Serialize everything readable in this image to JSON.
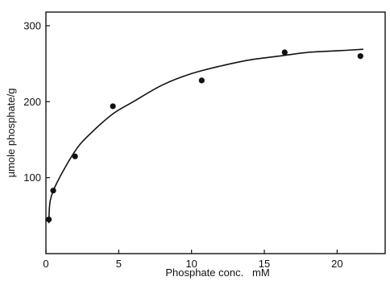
{
  "chart_data": {
    "type": "scatter",
    "xlabel": "Phosphate conc.   mM",
    "ylabel": "µmole phosphate/g",
    "xlim": [
      0,
      23.3
    ],
    "ylim": [
      0,
      318
    ],
    "x_ticks": [
      "0",
      "5",
      "10",
      "15",
      "20"
    ],
    "y_ticks": [
      "100",
      "200",
      "300"
    ],
    "grid": false,
    "series": [
      {
        "points": [
          {
            "x": 0.2,
            "y": 45
          },
          {
            "x": 0.5,
            "y": 83
          },
          {
            "x": 2.0,
            "y": 128
          },
          {
            "x": 4.6,
            "y": 194
          },
          {
            "x": 10.7,
            "y": 228
          },
          {
            "x": 16.4,
            "y": 265
          },
          {
            "x": 21.6,
            "y": 260
          }
        ]
      }
    ],
    "fit_curve": [
      {
        "x": 0.2,
        "y": 40
      },
      {
        "x": 0.3,
        "y": 70
      },
      {
        "x": 0.8,
        "y": 95
      },
      {
        "x": 2.0,
        "y": 135
      },
      {
        "x": 3.0,
        "y": 157
      },
      {
        "x": 4.6,
        "y": 184
      },
      {
        "x": 6.0,
        "y": 200
      },
      {
        "x": 8.0,
        "y": 222
      },
      {
        "x": 10.0,
        "y": 237
      },
      {
        "x": 12.0,
        "y": 247
      },
      {
        "x": 14.0,
        "y": 255
      },
      {
        "x": 16.0,
        "y": 260
      },
      {
        "x": 18.0,
        "y": 265
      },
      {
        "x": 20.0,
        "y": 267
      },
      {
        "x": 21.8,
        "y": 269
      }
    ]
  }
}
